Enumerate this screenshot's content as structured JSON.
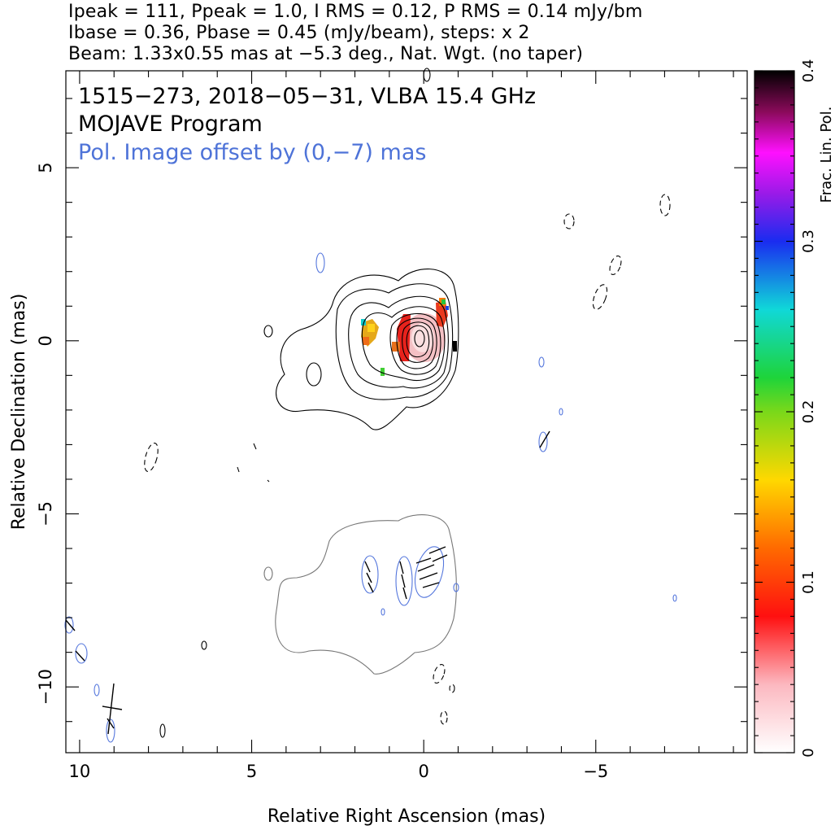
{
  "header": {
    "line1": "Ipeak = 111, Ppeak = 1.0, I RMS = 0.12, P RMS = 0.14 mJy/bm",
    "line2": "Ibase = 0.36, Pbase = 0.45 (mJy/beam), steps: x 2",
    "line3": "Beam: 1.33x0.55 mas at −5.3 deg., Nat. Wgt. (no taper)"
  },
  "chart_data": {
    "type": "contour-image",
    "title": "1515−273, 2018−05−31, VLBA 15.4 GHz",
    "subtitle": "MOJAVE Program",
    "annotation": "Pol. Image offset by (0,−7) mas",
    "xlabel": "Relative Right Ascension (mas)",
    "ylabel": "Relative Declination (mas)",
    "xlim": [
      10.4,
      -9.4
    ],
    "ylim": [
      -11.9,
      7.8
    ],
    "x_ticks": [
      10,
      5,
      0,
      -5
    ],
    "x_tick_labels": [
      "10",
      "5",
      "0",
      "−5"
    ],
    "y_ticks": [
      5,
      0,
      -5,
      -10
    ],
    "y_tick_labels": [
      "5",
      "0",
      "−5",
      "−10"
    ],
    "colorbar": {
      "label": "Frac. Lin. Pol.",
      "range": [
        0,
        0.4
      ],
      "ticks": [
        0,
        0.1,
        0.2,
        0.3,
        0.4
      ],
      "tick_labels": [
        "0",
        "0.1",
        "0.2",
        "0.3",
        "0.4"
      ]
    },
    "colors": {
      "stokes_i_contours": "#000000",
      "pol_contours": "#5577dd",
      "pol_total_contour": "#777777"
    },
    "source": {
      "core_offset_mas": [
        0,
        0
      ],
      "pol_image_offset_mas": [
        0,
        -7
      ]
    }
  }
}
